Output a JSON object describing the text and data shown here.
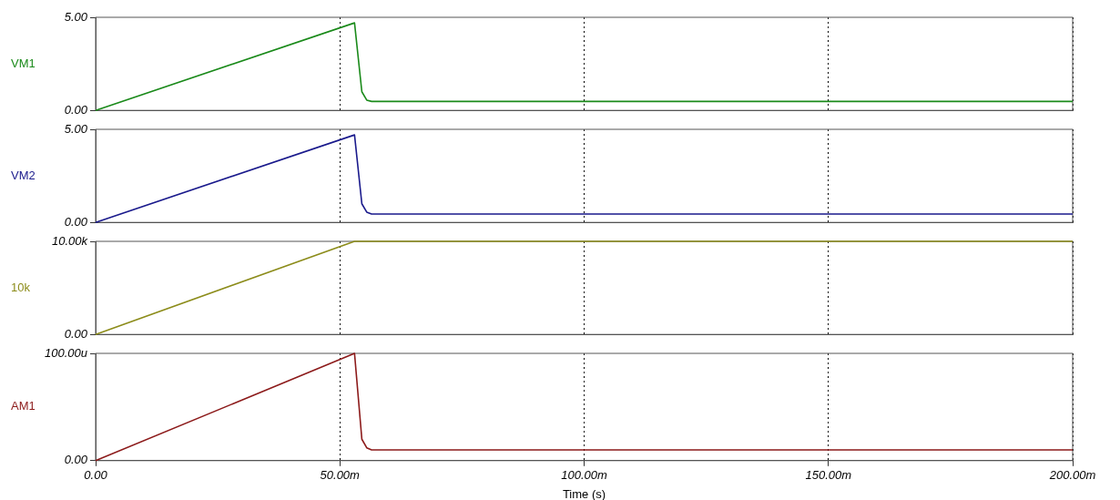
{
  "chart_data": [
    {
      "type": "line",
      "ylabel": "VM1",
      "x": [
        0,
        53,
        54.5,
        55.5,
        56.5,
        200
      ],
      "series": [
        {
          "color": "#1a8a1a",
          "values": [
            0,
            4.7,
            1.0,
            0.55,
            0.48,
            0.48
          ]
        }
      ],
      "xlim": [
        0,
        200
      ],
      "xticks": [
        0,
        50,
        100,
        150,
        200
      ],
      "ylim": [
        0,
        5
      ],
      "yticks": [
        {
          "value": 0,
          "label": "0.00"
        },
        {
          "value": 5,
          "label": "5.00"
        }
      ],
      "grid": "x",
      "tick_labels": "y"
    },
    {
      "type": "line",
      "ylabel": "VM2",
      "x": [
        0,
        53,
        54.5,
        55.5,
        56.5,
        200
      ],
      "series": [
        {
          "color": "#1a1a8c",
          "values": [
            0,
            4.7,
            1.0,
            0.55,
            0.45,
            0.45
          ]
        }
      ],
      "xlim": [
        0,
        200
      ],
      "xticks": [
        0,
        50,
        100,
        150,
        200
      ],
      "ylim": [
        0,
        5
      ],
      "yticks": [
        {
          "value": 0,
          "label": "0.00"
        },
        {
          "value": 5,
          "label": "5.00"
        }
      ],
      "grid": "x",
      "tick_labels": "y"
    },
    {
      "type": "line",
      "ylabel": "10k",
      "x": [
        0,
        53,
        200
      ],
      "series": [
        {
          "color": "#8c8c1a",
          "values": [
            0,
            10,
            10
          ]
        }
      ],
      "xlim": [
        0,
        200
      ],
      "xticks": [
        0,
        50,
        100,
        150,
        200
      ],
      "ylim": [
        0,
        10
      ],
      "yticks": [
        {
          "value": 0,
          "label": "0.00"
        },
        {
          "value": 10,
          "label": "10.00k"
        }
      ],
      "grid": "x",
      "tick_labels": "y"
    },
    {
      "type": "line",
      "ylabel": "AM1",
      "xlabel": "Time (s)",
      "x": [
        0,
        53,
        54.5,
        55.5,
        56.5,
        200
      ],
      "series": [
        {
          "color": "#8c1a1a",
          "values": [
            0,
            100,
            20,
            12,
            10,
            10
          ]
        }
      ],
      "xlim": [
        0,
        200
      ],
      "xticks": [
        {
          "value": 0,
          "label": "0.00"
        },
        {
          "value": 50,
          "label": "50.00m"
        },
        {
          "value": 100,
          "label": "100.00m"
        },
        {
          "value": 150,
          "label": "150.00m"
        },
        {
          "value": 200,
          "label": "200.00m"
        }
      ],
      "ylim": [
        0,
        100
      ],
      "yticks": [
        {
          "value": 0,
          "label": "0.00"
        },
        {
          "value": 100,
          "label": "100.00u"
        }
      ],
      "grid": "x"
    }
  ]
}
